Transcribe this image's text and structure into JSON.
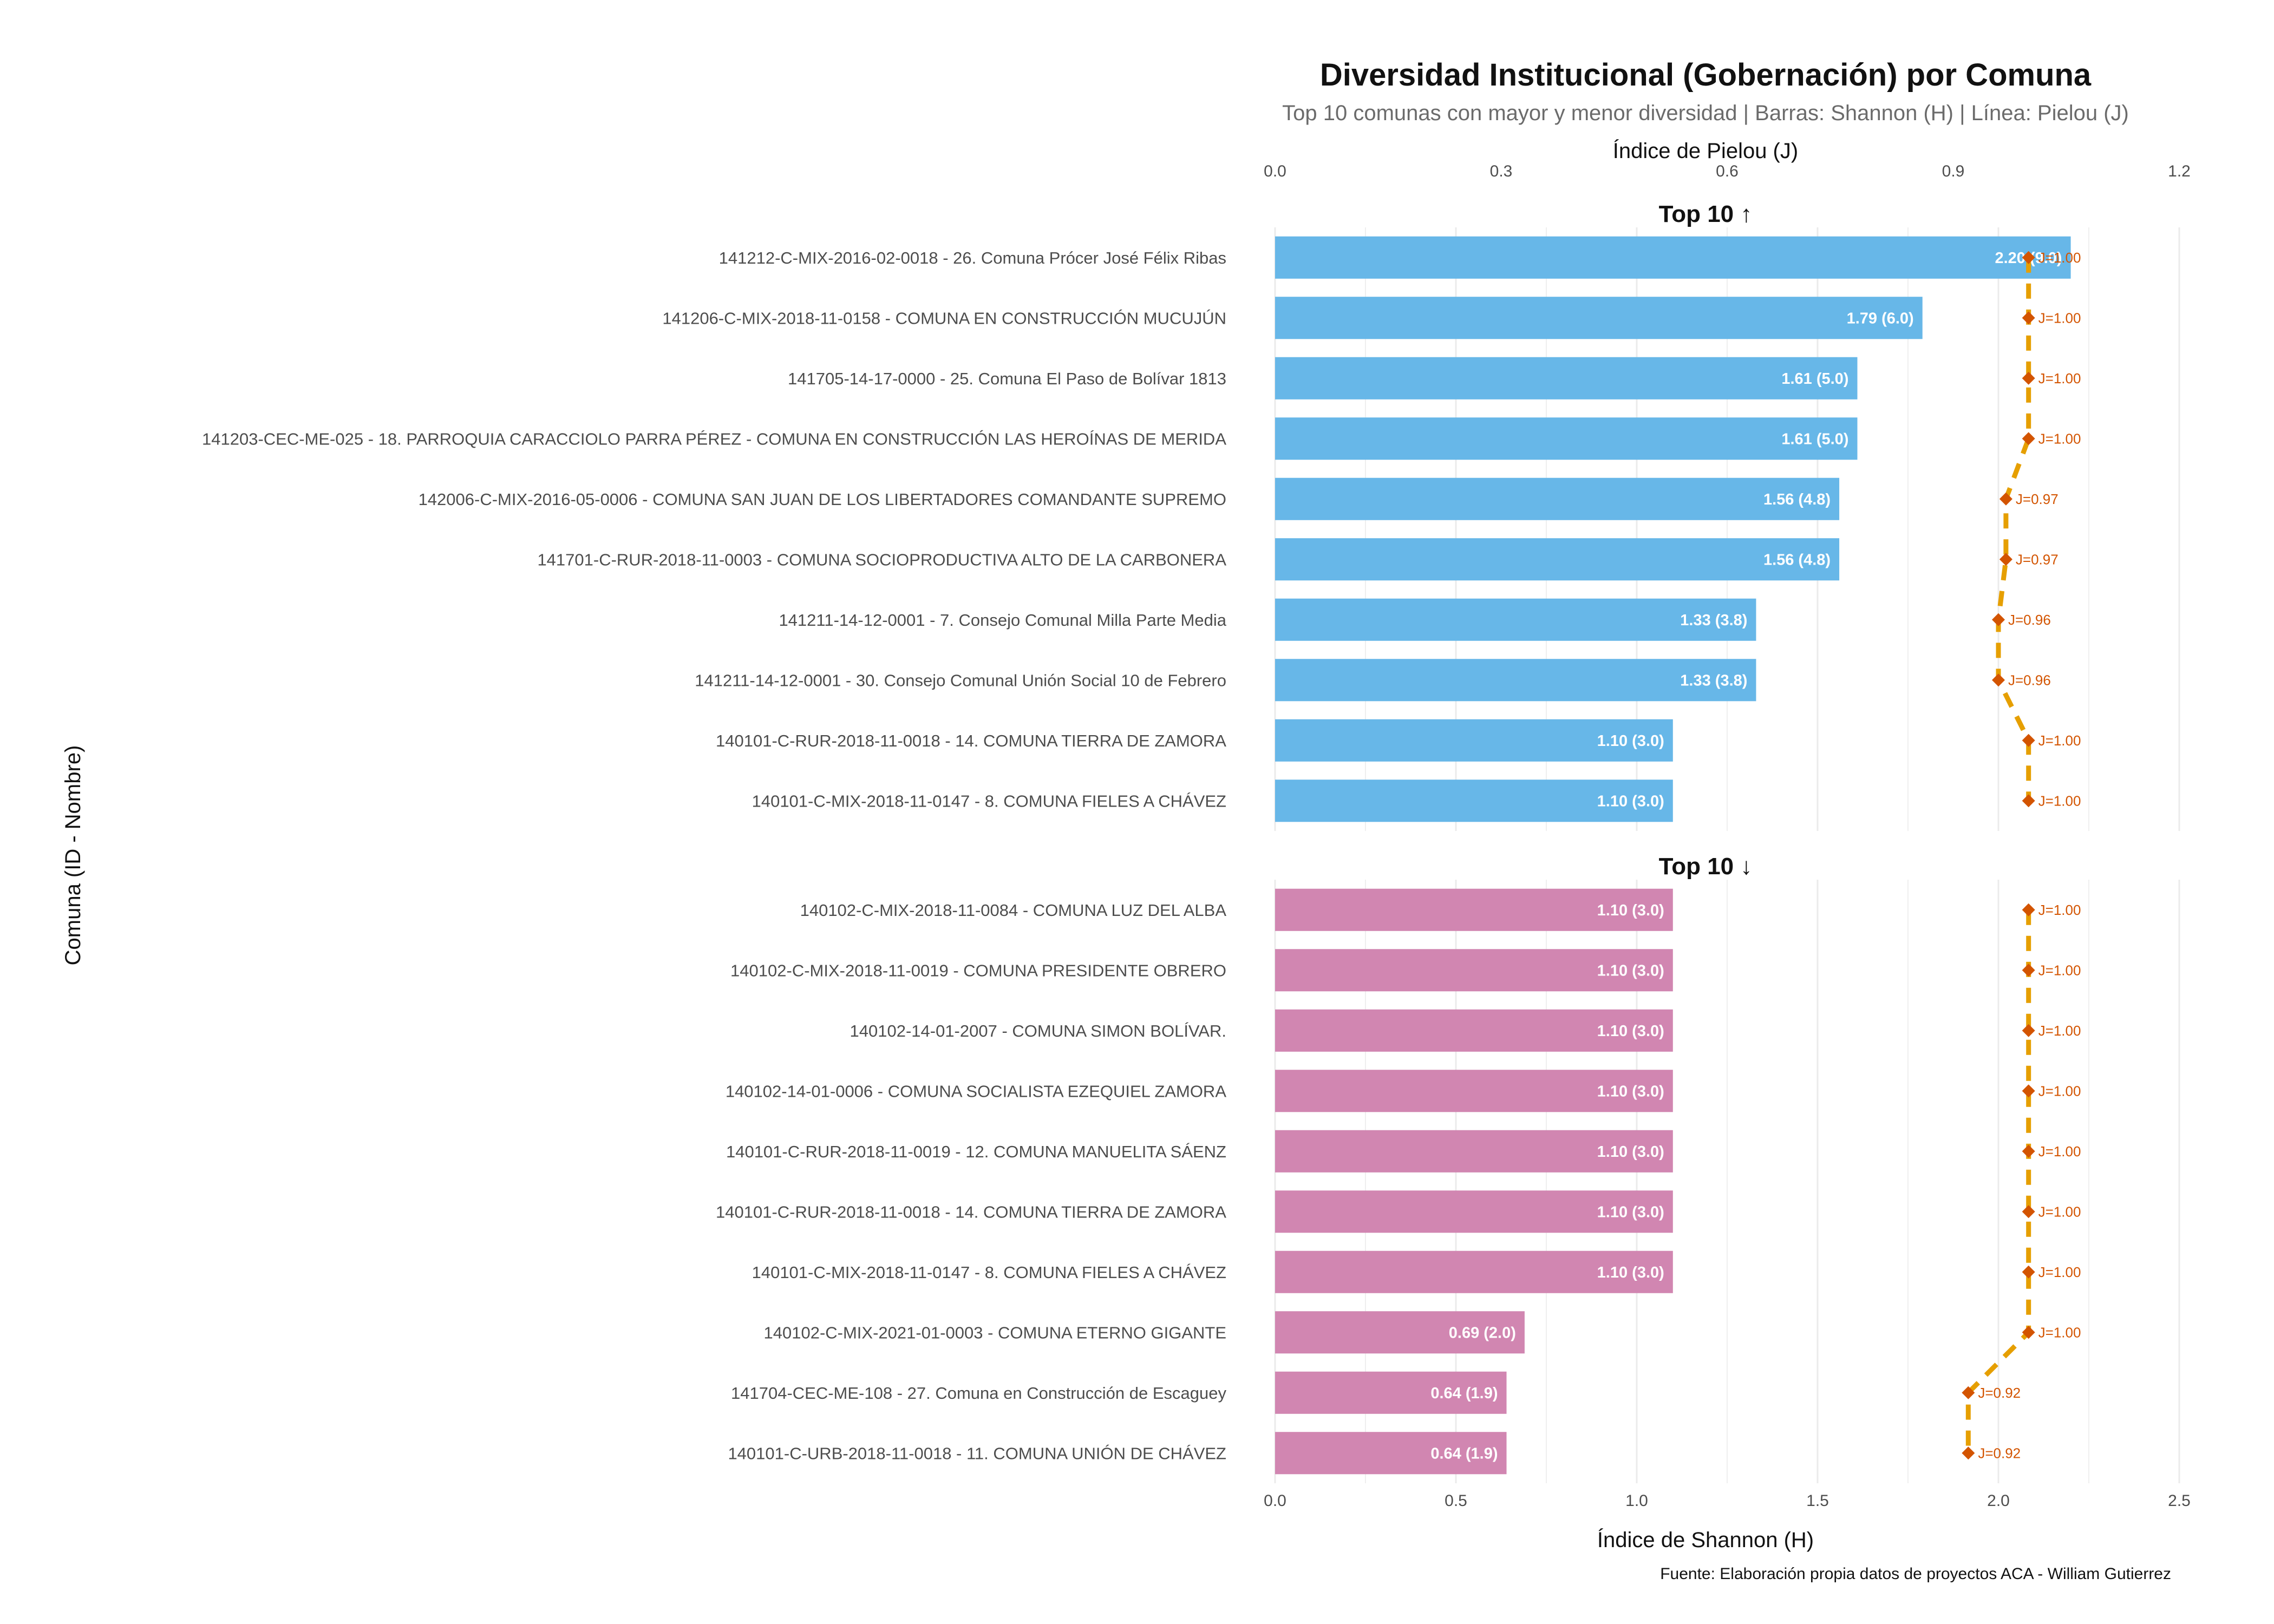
{
  "title": "Diversidad Institucional (Gobernación) por Comuna",
  "subtitle": "Top 10 comunas con mayor y menor diversidad | Barras: Shannon (H) | Línea: Pielou (J)",
  "caption": "Fuente: Elaboración propia datos de proyectos ACA - William Gutierrez",
  "colors": {
    "top_bar": "#67b7e8",
    "bottom_bar": "#d186b1",
    "pielou_line": "#e69f00",
    "pielou_point": "#d35400",
    "gridline": "#ebebeb"
  },
  "chart_data": {
    "type": "bar",
    "orientation": "horizontal",
    "xlabel": "Índice de Shannon (H)",
    "ylabel": "Comuna (ID - Nombre)",
    "secondary_xlabel": "Índice de Pielou (J)",
    "xlim": [
      0,
      2.5
    ],
    "x_ticks": [
      0,
      0.5,
      1,
      1.5,
      2,
      2.5
    ],
    "x_tick_labels": [
      "0.0",
      "0.5",
      "1.0",
      "1.5",
      "2.0",
      "2.5"
    ],
    "secondary_xlim": [
      0,
      1.2
    ],
    "secondary_x_ticks": [
      0,
      0.3,
      0.6,
      0.9,
      1.2
    ],
    "secondary_x_tick_labels": [
      "0.0",
      "0.3",
      "0.6",
      "0.9",
      "1.2"
    ],
    "grid": true,
    "legend": "none",
    "facets": [
      {
        "label": "Top 10 ↑",
        "series_color": "top_bar",
        "categories": [
          "141212-C-MIX-2016-02-0018 - 26. Comuna Prócer José Félix Ribas",
          "141206-C-MIX-2018-11-0158 - COMUNA EN CONSTRUCCIÓN MUCUJÚN",
          "141705-14-17-0000 - 25. Comuna El Paso de Bolívar 1813",
          "141203-CEC-ME-025 - 18. PARROQUIA CARACCIOLO PARRA PÉREZ - COMUNA EN CONSTRUCCIÓN LAS HEROÍNAS DE MERIDA",
          "142006-C-MIX-2016-05-0006 - COMUNA SAN JUAN DE LOS LIBERTADORES COMANDANTE SUPREMO",
          "141701-C-RUR-2018-11-0003 - COMUNA SOCIOPRODUCTIVA ALTO DE LA CARBONERA",
          "141211-14-12-0001 - 7. Consejo Comunal Milla Parte Media",
          "141211-14-12-0001 - 30. Consejo Comunal  Unión Social 10 de Febrero",
          "140101-C-RUR-2018-11-0018 - 14. COMUNA TIERRA DE ZAMORA",
          "140101-C-MIX-2018-11-0147 - 8. COMUNA FIELES A CHÁVEZ"
        ],
        "shannon": [
          2.2,
          1.79,
          1.61,
          1.61,
          1.56,
          1.56,
          1.33,
          1.33,
          1.1,
          1.1
        ],
        "bar_labels": [
          "2.20 (9.0)",
          "1.79 (6.0)",
          "1.61 (5.0)",
          "1.61 (5.0)",
          "1.56 (4.8)",
          "1.56 (4.8)",
          "1.33 (3.8)",
          "1.33 (3.8)",
          "1.10 (3.0)",
          "1.10 (3.0)"
        ],
        "pielou": [
          1.0,
          1.0,
          1.0,
          1.0,
          0.97,
          0.97,
          0.96,
          0.96,
          1.0,
          1.0
        ],
        "pielou_labels": [
          "J=1.00",
          "J=1.00",
          "J=1.00",
          "J=1.00",
          "J=0.97",
          "J=0.97",
          "J=0.96",
          "J=0.96",
          "J=1.00",
          "J=1.00"
        ]
      },
      {
        "label": "Top 10 ↓",
        "series_color": "bottom_bar",
        "categories": [
          "140102-C-MIX-2018-11-0084 - COMUNA LUZ DEL ALBA",
          "140102-C-MIX-2018-11-0019 - COMUNA PRESIDENTE OBRERO",
          "140102-14-01-2007 - COMUNA SIMON BOLÍVAR.",
          "140102-14-01-0006 - COMUNA SOCIALISTA EZEQUIEL ZAMORA",
          "140101-C-RUR-2018-11-0019 - 12. COMUNA MANUELITA SÁENZ",
          "140101-C-RUR-2018-11-0018 - 14. COMUNA TIERRA DE ZAMORA",
          "140101-C-MIX-2018-11-0147 - 8. COMUNA FIELES A CHÁVEZ",
          "140102-C-MIX-2021-01-0003 - COMUNA ETERNO GIGANTE",
          "141704-CEC-ME-108 - 27. Comuna en Construcción de Escaguey",
          "140101-C-URB-2018-11-0018 - 11. COMUNA UNIÓN DE CHÁVEZ"
        ],
        "shannon": [
          1.1,
          1.1,
          1.1,
          1.1,
          1.1,
          1.1,
          1.1,
          0.69,
          0.64,
          0.64
        ],
        "bar_labels": [
          "1.10 (3.0)",
          "1.10 (3.0)",
          "1.10 (3.0)",
          "1.10 (3.0)",
          "1.10 (3.0)",
          "1.10 (3.0)",
          "1.10 (3.0)",
          "0.69 (2.0)",
          "0.64 (1.9)",
          "0.64 (1.9)"
        ],
        "pielou": [
          1.0,
          1.0,
          1.0,
          1.0,
          1.0,
          1.0,
          1.0,
          1.0,
          0.92,
          0.92
        ],
        "pielou_labels": [
          "J=1.00",
          "J=1.00",
          "J=1.00",
          "J=1.00",
          "J=1.00",
          "J=1.00",
          "J=1.00",
          "J=1.00",
          "J=0.92",
          "J=0.92"
        ]
      }
    ]
  }
}
